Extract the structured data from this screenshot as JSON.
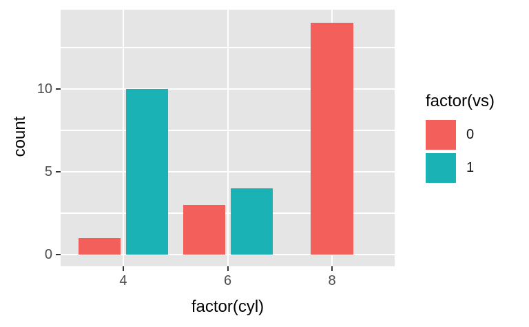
{
  "figure": {
    "background": "#FFFFFF"
  },
  "chart_data": {
    "type": "bar",
    "bar_mode": "dodge",
    "title": "",
    "xlabel": "factor(cyl)",
    "ylabel": "count",
    "categories": [
      "4",
      "6",
      "8"
    ],
    "series": [
      {
        "name": "0",
        "color": "#F3605B",
        "values": [
          1,
          3,
          14
        ]
      },
      {
        "name": "1",
        "color": "#1BB2B5",
        "values": [
          10,
          4,
          0
        ]
      }
    ],
    "ylim": [
      -0.7,
      14.8
    ],
    "yticks": [
      0,
      5,
      10
    ],
    "yticks_minor": [
      2.5,
      7.5,
      12.5
    ],
    "grid": "on",
    "legend": {
      "title": "factor(vs)",
      "position": "right",
      "entries": [
        "0",
        "1"
      ]
    },
    "panel_background": "#E5E5E5",
    "gridline_color": "#FFFFFF",
    "tick_color": "#333333",
    "tick_label_color": "#4D4D4D",
    "title_color": "#000000"
  }
}
